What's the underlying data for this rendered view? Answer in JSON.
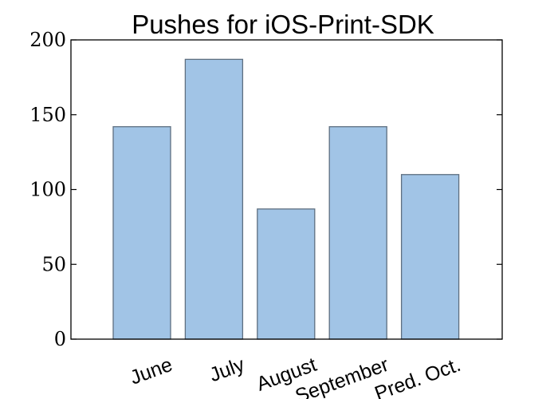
{
  "chart_data": {
    "type": "bar",
    "title": "Pushes for iOS-Print-SDK",
    "categories": [
      "June",
      "July",
      "August",
      "September",
      "Pred. Oct."
    ],
    "values": [
      142,
      187,
      87,
      142,
      110
    ],
    "xlabel": "",
    "ylabel": "",
    "ylim": [
      0,
      200
    ],
    "yticks": [
      "0",
      "50",
      "100",
      "150",
      "200"
    ],
    "grid": false,
    "bar_color": "#a1c4e6",
    "bar_edge_color": "#5e6f80"
  }
}
